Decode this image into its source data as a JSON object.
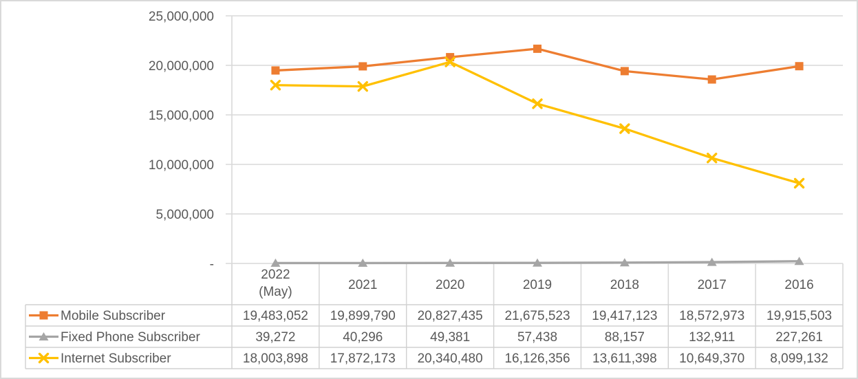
{
  "chart_data": {
    "type": "line",
    "title": "",
    "xlabel": "",
    "ylabel": "",
    "categories": [
      "2022\n(May)",
      "2021",
      "2020",
      "2019",
      "2018",
      "2017",
      "2016"
    ],
    "series": [
      {
        "name": "Mobile Subscriber",
        "color": "#ED7D31",
        "marker": "square",
        "values": [
          19483052,
          19899790,
          20827435,
          21675523,
          19417123,
          18572973,
          19915503
        ]
      },
      {
        "name": "Fixed Phone Subscriber",
        "color": "#A5A5A5",
        "marker": "triangle",
        "values": [
          39272,
          40296,
          49381,
          57438,
          88157,
          132911,
          227261
        ]
      },
      {
        "name": "Internet Subscriber",
        "color": "#FFC000",
        "marker": "x",
        "values": [
          18003898,
          17872173,
          20340480,
          16126356,
          13611398,
          10649370,
          8099132
        ]
      }
    ],
    "y_axis": {
      "min": 0,
      "max": 25000000,
      "step": 5000000,
      "zero_label": "-",
      "tick_labels": [
        "25,000,000",
        "20,000,000",
        "15,000,000",
        "10,000,000",
        "5,000,000",
        "-"
      ]
    },
    "grid": true,
    "legend_position": "data-table-left",
    "data_table_shown": true,
    "colors": {
      "grid": "#D9D9D9",
      "text": "#595959",
      "table_border": "#D0D0D0",
      "frame_border": "#D9D9D9",
      "background": "#FFFFFF"
    }
  }
}
